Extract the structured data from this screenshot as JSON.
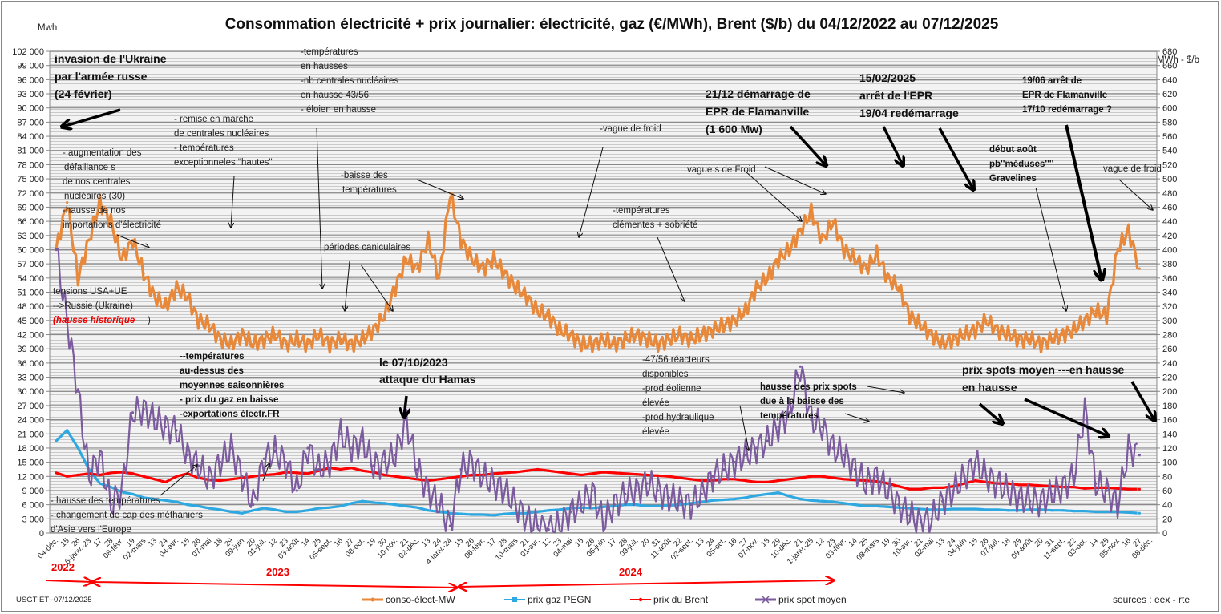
{
  "chart_data": {
    "type": "line",
    "title": "Consommation électricité + prix journalier: électricité, gaz (€/MWh), Brent ($/b) du 04/12/2022 au 07/12/2025",
    "ylabel_left": "Mwh",
    "ylabel_right": "€/MWh - $/b",
    "ylim_left": [
      0,
      102000
    ],
    "ylim_right": [
      0,
      680
    ],
    "grid": true,
    "legend_position": "bottom",
    "y_ticks_left": [
      "0",
      "3 000",
      "6 000",
      "9 000",
      "12 000",
      "15 000",
      "18 000",
      "21 000",
      "24 000",
      "27 000",
      "30 000",
      "33 000",
      "36 000",
      "39 000",
      "42 000",
      "45 000",
      "48 000",
      "51 000",
      "54 000",
      "57 000",
      "60 000",
      "63 000",
      "66 000",
      "69 000",
      "72 000",
      "75 000",
      "78 000",
      "81 000",
      "84 000",
      "87 000",
      "90 000",
      "93 000",
      "96 000",
      "99 000",
      "102 000"
    ],
    "y_ticks_right": [
      "0",
      "20",
      "40",
      "60",
      "80",
      "100",
      "120",
      "140",
      "160",
      "180",
      "200",
      "220",
      "240",
      "260",
      "280",
      "300",
      "320",
      "340",
      "360",
      "380",
      "400",
      "420",
      "440",
      "460",
      "480",
      "500",
      "520",
      "540",
      "560",
      "580",
      "600",
      "620",
      "640",
      "660",
      "680"
    ],
    "x": [
      "04-déc.",
      "15",
      "26",
      "6-janv.-23",
      "17",
      "28",
      "08-févr.",
      "19",
      "02-mars",
      "13",
      "24",
      "04-avr.",
      "15",
      "26",
      "07-mai",
      "18",
      "29",
      "09-juin",
      "20",
      "01-juil.",
      "12",
      "23",
      "03-août",
      "14",
      "25",
      "05-sept.",
      "16",
      "27",
      "08-oct.",
      "19",
      "30",
      "10-nov.",
      "21",
      "02-déc.",
      "13",
      "24",
      "4-janv.-24",
      "15",
      "26",
      "06-févr.",
      "17",
      "28",
      "10-mars",
      "21",
      "01-avr.",
      "12",
      "23",
      "04-mai",
      "15",
      "26",
      "06-juin",
      "17",
      "28",
      "09-juil.",
      "20",
      "31",
      "11-août",
      "22",
      "02-sept.",
      "13",
      "24",
      "05-oct.",
      "16",
      "27",
      "07-nov.",
      "18",
      "29",
      "10-déc.",
      "21",
      "1-janv.-25",
      "12",
      "23",
      "03-févr.",
      "14",
      "25",
      "08-mars",
      "19",
      "30",
      "10-avr.",
      "21",
      "02-mai",
      "13",
      "24",
      "04-juin",
      "15",
      "26",
      "07-juil.",
      "18",
      "29",
      "09-août",
      "20",
      "31",
      "11-sept.",
      "22",
      "03-oct.",
      "14",
      "25",
      "05-nov.",
      "16",
      "27",
      "08-déc."
    ],
    "series": [
      {
        "name": "conso-élect-MW",
        "axis": "left",
        "color": "#E8883A",
        "values": [
          60000,
          70000,
          54000,
          62000,
          70000,
          66000,
          58000,
          62000,
          55000,
          50000,
          48000,
          52000,
          50000,
          45000,
          44000,
          41000,
          40000,
          42000,
          40000,
          41000,
          42000,
          40000,
          41000,
          40000,
          42000,
          40000,
          41000,
          40000,
          41000,
          43000,
          46000,
          52000,
          58000,
          56000,
          62000,
          54000,
          72000,
          62000,
          58000,
          56000,
          58000,
          55000,
          52000,
          50000,
          47000,
          46000,
          43000,
          42000,
          40000,
          40000,
          41000,
          40000,
          41000,
          42000,
          41000,
          40000,
          41000,
          42000,
          41000,
          42000,
          43000,
          44000,
          45000,
          47000,
          52000,
          54000,
          58000,
          60000,
          64000,
          68000,
          62000,
          66000,
          60000,
          58000,
          56000,
          59000,
          54000,
          52000,
          46000,
          44000,
          42000,
          40000,
          41000,
          42000,
          43000,
          45000,
          43000,
          42000,
          41000,
          41000,
          40000,
          41000,
          42000,
          43000,
          45000,
          47000,
          46000,
          60000,
          64000,
          56000
        ]
      },
      {
        "name": "prix gaz PEGN",
        "axis": "right",
        "color": "#2EA8E0",
        "values": [
          130,
          145,
          120,
          90,
          70,
          65,
          58,
          55,
          50,
          48,
          46,
          44,
          40,
          38,
          35,
          33,
          30,
          28,
          32,
          35,
          33,
          30,
          30,
          32,
          35,
          36,
          38,
          42,
          45,
          43,
          42,
          40,
          38,
          36,
          32,
          30,
          28,
          27,
          26,
          26,
          25,
          27,
          28,
          28,
          30,
          32,
          33,
          35,
          36,
          35,
          37,
          38,
          40,
          40,
          38,
          38,
          39,
          40,
          42,
          44,
          46,
          47,
          48,
          50,
          53,
          55,
          57,
          52,
          48,
          46,
          45,
          44,
          42,
          40,
          38,
          38,
          37,
          36,
          35,
          34,
          33,
          33,
          34,
          34,
          34,
          33,
          33,
          32,
          32,
          33,
          33,
          32,
          32,
          31,
          31,
          30,
          30,
          30,
          29,
          28
        ]
      },
      {
        "name": "prix du Brent",
        "axis": "right",
        "color": "#FF0000",
        "values": [
          85,
          80,
          82,
          84,
          82,
          85,
          86,
          84,
          80,
          76,
          72,
          80,
          84,
          78,
          75,
          74,
          76,
          78,
          80,
          82,
          83,
          86,
          85,
          84,
          88,
          92,
          90,
          92,
          88,
          86,
          82,
          80,
          78,
          76,
          74,
          76,
          78,
          80,
          82,
          82,
          84,
          85,
          86,
          88,
          90,
          88,
          86,
          84,
          82,
          84,
          86,
          85,
          84,
          83,
          82,
          81,
          80,
          78,
          76,
          74,
          74,
          76,
          76,
          74,
          72,
          72,
          74,
          76,
          78,
          80,
          80,
          78,
          76,
          75,
          74,
          73,
          70,
          66,
          62,
          62,
          64,
          64,
          66,
          70,
          74,
          72,
          70,
          70,
          68,
          68,
          67,
          66,
          65,
          65,
          63,
          64,
          64,
          63,
          62,
          62
        ]
      },
      {
        "name": "prix spot moyen",
        "axis": "right",
        "color": "#7B5B9E",
        "values": [
          400,
          300,
          200,
          80,
          110,
          40,
          60,
          170,
          175,
          160,
          150,
          145,
          110,
          95,
          75,
          100,
          120,
          80,
          40,
          105,
          115,
          100,
          60,
          120,
          90,
          100,
          140,
          120,
          130,
          95,
          100,
          110,
          160,
          90,
          60,
          40,
          10,
          90,
          100,
          80,
          70,
          60,
          40,
          20,
          10,
          5,
          10,
          30,
          40,
          60,
          15,
          40,
          55,
          60,
          70,
          60,
          50,
          45,
          40,
          55,
          80,
          90,
          100,
          110,
          120,
          130,
          150,
          170,
          235,
          160,
          150,
          120,
          110,
          90,
          70,
          80,
          60,
          40,
          25,
          15,
          20,
          45,
          60,
          80,
          100,
          80,
          70,
          60,
          50,
          45,
          45,
          55,
          65,
          80,
          175,
          70,
          60,
          40,
          120,
          110
        ]
      }
    ]
  },
  "annotations": {
    "ukraine": [
      "invasion de l'Ukraine",
      "par l'armée russe",
      "(24 février)"
    ],
    "defaillances": [
      "- augmentation  des",
      "défaillance s",
      "de nos centrales",
      "nucléaires (30)",
      "-hausse de nos",
      "importations d'électricité"
    ],
    "remise": [
      "- remise en marche",
      "de centrales nucléaires",
      "- températures",
      "exceptionneles \"hautes\""
    ],
    "temp_hausse": [
      "-températures",
      "en hausses",
      "-nb centrales nucléaires",
      "en hausse 43/56",
      "- éloien en hausse"
    ],
    "baisse_temp": [
      "-baisse des",
      "températures"
    ],
    "canicule": [
      "périodes caniculaires"
    ],
    "tensions": [
      "tensions USA+UE",
      "-->Russie (Ukraine)"
    ],
    "hausse_historique": "(hausse historique",
    "hausse_historique_close": ")",
    "temp_dessus": [
      "--températures",
      "au-dessus des",
      "moyennes saisonnières",
      "- prix du gaz en baisse",
      "-exportations électr.FR"
    ],
    "hamas": [
      "le 07/10/2023",
      "attaque du Hamas"
    ],
    "hausse_temp_bas": [
      "- hausse des températures",
      "- changement de cap des méthaniers",
      "d'Asie vers l'Europe"
    ],
    "vague_froid_1": [
      "-vague de froid"
    ],
    "clementes": [
      "-températures",
      "clémentes + sobriété"
    ],
    "reacteurs": [
      "-47/56 réacteurs",
      "disponibles",
      "-prod éolienne",
      "élevée",
      "-prod hydraulique",
      "élevée"
    ],
    "epr_start": [
      "21/12 démarrage de",
      "EPR de Flamanville",
      "(1 600 Mw)"
    ],
    "vagues_froid": [
      "vague s de Froid"
    ],
    "epr_stop": [
      "15/02/2025",
      "arrêt de  l'EPR",
      "19/04 redémarrage"
    ],
    "hausse_spots": [
      "hausse des prix spots",
      "due à la baisse des",
      "températures"
    ],
    "meduses": [
      "début août",
      "pb''méduses''''",
      "Gravelines"
    ],
    "epr_stop2": [
      "19/06 arrêt de",
      "EPR de Flamanville",
      "17/10 redémarrage ?"
    ],
    "vague_froid_2": [
      "vague de froid"
    ],
    "spots_hausse": [
      "prix spots moyen  ---en  hausse",
      "en  hausse"
    ]
  },
  "years": [
    "2022",
    "2023",
    "2024"
  ],
  "footer": {
    "credit": "USGT-ET--07/12/2025",
    "sources": "sources : eex - rte"
  }
}
